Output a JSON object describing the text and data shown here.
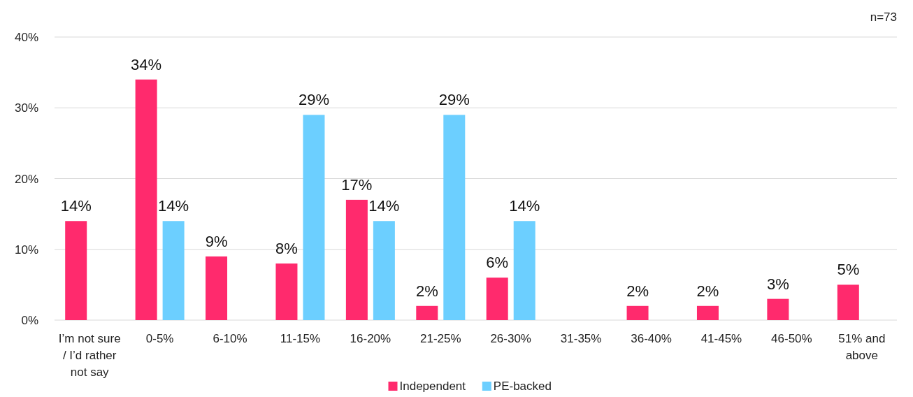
{
  "chart_data": {
    "type": "bar",
    "categories": [
      "I’m not sure / I’d rather not say",
      "0-5%",
      "6-10%",
      "11-15%",
      "16-20%",
      "21-25%",
      "26-30%",
      "31-35%",
      "36-40%",
      "41-45%",
      "46-50%",
      "51% and above"
    ],
    "series": [
      {
        "name": "Independent",
        "color": "#ff2a6d",
        "values": [
          14,
          34,
          9,
          8,
          17,
          2,
          6,
          null,
          2,
          2,
          3,
          5
        ],
        "value_labels": [
          "14%",
          "34%",
          "9%",
          "8%",
          "17%",
          "2%",
          "6%",
          null,
          "2%",
          "2%",
          "3%",
          "5%"
        ]
      },
      {
        "name": "PE-backed",
        "color": "#6ccfff",
        "values": [
          null,
          14,
          null,
          29,
          14,
          29,
          14,
          null,
          null,
          null,
          null,
          null
        ],
        "value_labels": [
          null,
          "14%",
          null,
          "29%",
          "14%",
          "29%",
          "14%",
          null,
          null,
          null,
          null,
          null
        ]
      }
    ],
    "ylim": [
      0,
      40
    ],
    "yticks": [
      {
        "value": 0,
        "label": "0%"
      },
      {
        "value": 10,
        "label": "10%"
      },
      {
        "value": 20,
        "label": "20%"
      },
      {
        "value": 30,
        "label": "30%"
      },
      {
        "value": 40,
        "label": "40%"
      }
    ],
    "grid": "y",
    "legend": "bottom",
    "annotations": [
      "n=73"
    ]
  }
}
